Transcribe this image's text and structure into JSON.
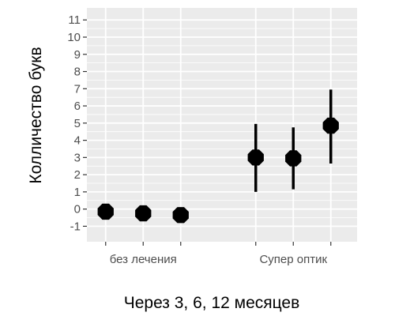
{
  "chart_data": {
    "type": "scatter",
    "title": "",
    "xlabel": "Через 3, 6, 12 месяцев",
    "ylabel": "Колличество букв",
    "ylim": [
      -1.9,
      11.7
    ],
    "yticks": [
      -1,
      0,
      1,
      2,
      3,
      4,
      5,
      6,
      7,
      8,
      9,
      10,
      11
    ],
    "grid": true,
    "legend": "none",
    "x_labels": [
      {
        "text": "без лечения",
        "pos": 2
      },
      {
        "text": "Супер оптик",
        "pos": 6
      }
    ],
    "points": [
      {
        "x": 1,
        "y": -0.15,
        "lower": -0.15,
        "upper": -0.15
      },
      {
        "x": 2,
        "y": -0.25,
        "lower": -0.25,
        "upper": -0.25
      },
      {
        "x": 3,
        "y": -0.35,
        "lower": -0.35,
        "upper": -0.35
      },
      {
        "x": 5,
        "y": 3.0,
        "lower": 1.0,
        "upper": 4.95
      },
      {
        "x": 6,
        "y": 2.95,
        "lower": 1.15,
        "upper": 4.75
      },
      {
        "x": 7,
        "y": 4.85,
        "lower": 2.65,
        "upper": 6.95
      }
    ],
    "colors": {
      "panel": "#ebebeb",
      "grid": "#ffffff",
      "marker": "#000000",
      "tick_label": "#4d4d4d"
    }
  }
}
